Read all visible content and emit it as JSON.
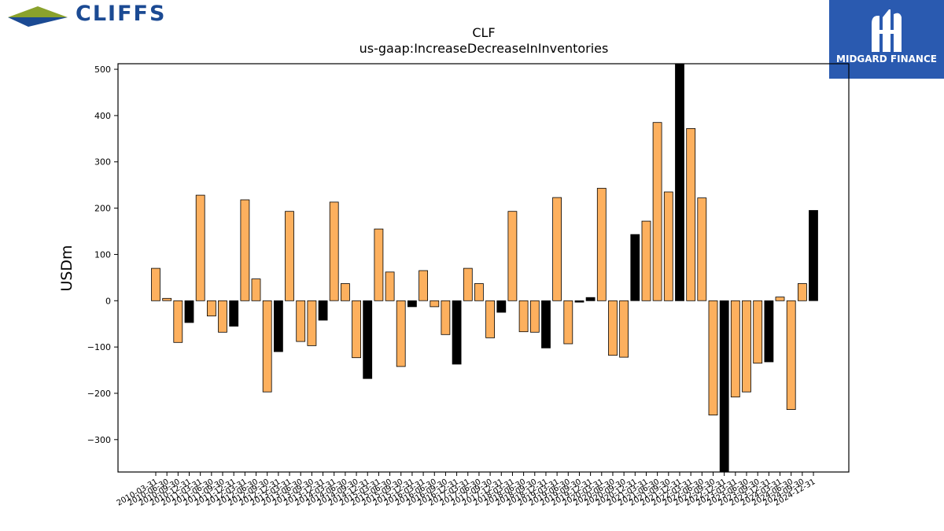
{
  "logos": {
    "left": {
      "name": "CLIFFS",
      "colors": {
        "blue": "#1b4a93",
        "green": "#8aa22c"
      }
    },
    "right": {
      "name": "MIDGARD FINANCE",
      "background": "#2a5ab0"
    }
  },
  "chart_data": {
    "type": "bar",
    "title": "CLF",
    "subtitle": "us-gaap:IncreaseDecreaseInInventories",
    "xlabel": "",
    "ylabel": "USDm",
    "ylim": [
      -370,
      512
    ],
    "yticks": [
      -300,
      -200,
      -100,
      0,
      100,
      200,
      300,
      400,
      500
    ],
    "grid": false,
    "colors": {
      "default": "#fdb05e",
      "highlight": "#000000"
    },
    "categories": [
      "2010-03-31",
      "2010-06-30",
      "2010-09-30",
      "2010-12-31",
      "2011-03-31",
      "2011-06-30",
      "2011-09-30",
      "2011-12-31",
      "2012-03-31",
      "2012-06-30",
      "2012-09-30",
      "2012-12-31",
      "2013-03-31",
      "2013-06-30",
      "2013-09-30",
      "2013-12-31",
      "2014-03-31",
      "2014-06-30",
      "2014-09-30",
      "2014-12-31",
      "2015-03-31",
      "2015-06-30",
      "2015-09-30",
      "2015-12-31",
      "2016-03-31",
      "2016-06-30",
      "2016-09-30",
      "2016-12-31",
      "2017-03-31",
      "2017-06-30",
      "2017-09-30",
      "2017-12-31",
      "2018-03-31",
      "2018-06-30",
      "2018-09-30",
      "2018-12-31",
      "2019-03-31",
      "2019-06-30",
      "2019-09-30",
      "2019-12-31",
      "2020-03-31",
      "2020-06-30",
      "2020-09-30",
      "2020-12-31",
      "2021-03-31",
      "2021-06-30",
      "2021-09-30",
      "2021-12-31",
      "2022-03-31",
      "2022-06-30",
      "2022-09-30",
      "2022-12-31",
      "2023-03-31",
      "2023-06-30",
      "2023-09-30",
      "2023-12-31",
      "2024-03-31",
      "2024-06-30",
      "2024-09-30",
      "2024-12-31"
    ],
    "values": [
      70,
      5,
      -90,
      -47,
      228,
      -33,
      -68,
      -55,
      218,
      47,
      -197,
      -110,
      193,
      -88,
      -97,
      -42,
      213,
      37,
      -123,
      -168,
      155,
      62,
      -142,
      -13,
      65,
      -13,
      -73,
      -137,
      70,
      37,
      -80,
      -25,
      193,
      -67,
      -68,
      -102,
      223,
      -93,
      -3,
      7,
      243,
      -118,
      -122,
      143,
      172,
      385,
      235,
      512,
      372,
      222,
      -247,
      -370,
      -208,
      -197,
      -135,
      -132,
      8,
      -235,
      37,
      195
    ],
    "highlight": [
      false,
      false,
      false,
      true,
      false,
      false,
      false,
      true,
      false,
      false,
      false,
      true,
      false,
      false,
      false,
      true,
      false,
      false,
      false,
      true,
      false,
      false,
      false,
      true,
      false,
      false,
      false,
      true,
      false,
      false,
      false,
      true,
      false,
      false,
      false,
      true,
      false,
      false,
      true,
      true,
      false,
      false,
      false,
      true,
      false,
      false,
      false,
      true,
      false,
      false,
      false,
      true,
      false,
      false,
      false,
      true,
      false,
      false,
      false,
      true
    ]
  }
}
